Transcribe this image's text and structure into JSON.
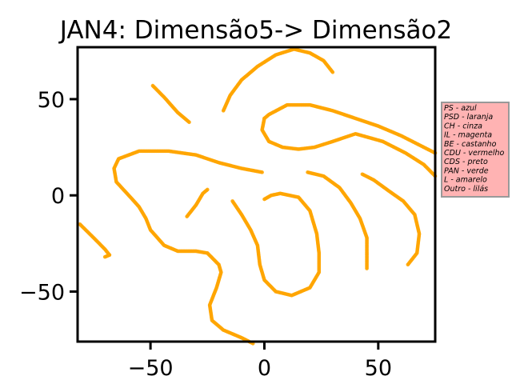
{
  "chart_data": {
    "type": "scatter",
    "title": "JAN4: Dimensão5-> Dimensão2",
    "xlabel": "",
    "ylabel": "",
    "xlim": [
      -82,
      75
    ],
    "ylim": [
      -76,
      77
    ],
    "xticks": [
      -50,
      0,
      50
    ],
    "yticks": [
      -50,
      0,
      50
    ],
    "x_tick_labels": [
      "−50",
      "0",
      "50"
    ],
    "y_tick_labels": [
      "−50",
      "0",
      "50"
    ],
    "grid": false,
    "point_color": "#ffa500",
    "legend": {
      "placement": "outside-right",
      "background": "#ffb3b3",
      "border": "#999999",
      "entries": [
        "PS - azul",
        "PSD - laranja",
        "CH - cinza",
        "IL - magenta",
        "BE - castanho",
        "CDU - vermelho",
        "CDS - preto",
        "PAN - verde",
        "L - amarelo",
        "Outro - lilás"
      ]
    },
    "series": [
      {
        "color": "#ffa500",
        "curves": [
          [
            [
              -49,
              57
            ],
            [
              -44,
              51
            ],
            [
              -38,
              43
            ],
            [
              -33,
              38
            ]
          ],
          [
            [
              -18,
              44
            ],
            [
              -15,
              52
            ],
            [
              -10,
              60
            ],
            [
              -3,
              67
            ],
            [
              5,
              73
            ],
            [
              13,
              76
            ],
            [
              20,
              74
            ],
            [
              26,
              70
            ],
            [
              30,
              64
            ]
          ],
          [
            [
              0,
              40
            ],
            [
              -1,
              34
            ],
            [
              2,
              28
            ],
            [
              8,
              25
            ],
            [
              15,
              24
            ],
            [
              22,
              25
            ],
            [
              30,
              28
            ],
            [
              40,
              32
            ],
            [
              52,
              28
            ],
            [
              62,
              22
            ],
            [
              70,
              16
            ],
            [
              75,
              10
            ]
          ],
          [
            [
              0,
              40
            ],
            [
              2,
              42
            ],
            [
              10,
              47
            ],
            [
              20,
              47
            ],
            [
              30,
              44
            ],
            [
              40,
              40
            ],
            [
              50,
              36
            ],
            [
              60,
              31
            ],
            [
              70,
              25
            ],
            [
              75,
              22
            ]
          ],
          [
            [
              -81,
              -15
            ],
            [
              -75,
              -22
            ],
            [
              -70,
              -28
            ],
            [
              -68,
              -31
            ]
          ],
          [
            [
              -68,
              -31
            ],
            [
              -70,
              -32
            ]
          ],
          [
            [
              -1,
              12
            ],
            [
              -10,
              14
            ],
            [
              -20,
              17
            ],
            [
              -30,
              21
            ],
            [
              -42,
              23
            ],
            [
              -55,
              23
            ],
            [
              -64,
              19
            ],
            [
              -66,
              14
            ],
            [
              -65,
              7
            ],
            [
              -58,
              -2
            ],
            [
              -55,
              -6
            ],
            [
              -52,
              -12
            ],
            [
              -50,
              -18
            ],
            [
              -44,
              -26
            ],
            [
              -38,
              -29
            ],
            [
              -30,
              -29
            ],
            [
              -25,
              -30
            ],
            [
              -20,
              -36
            ],
            [
              -19,
              -40
            ],
            [
              -21,
              -48
            ],
            [
              -24,
              -57
            ],
            [
              -23,
              -65
            ],
            [
              -18,
              -70
            ],
            [
              -10,
              -74
            ],
            [
              -5,
              -77
            ]
          ],
          [
            [
              -34,
              -11
            ],
            [
              -30,
              -5
            ],
            [
              -27,
              1
            ],
            [
              -25,
              3
            ]
          ],
          [
            [
              -14,
              -3
            ],
            [
              -10,
              -10
            ],
            [
              -6,
              -18
            ],
            [
              -3,
              -26
            ],
            [
              -2,
              -36
            ],
            [
              0,
              -44
            ],
            [
              5,
              -50
            ],
            [
              12,
              -52
            ],
            [
              20,
              -48
            ],
            [
              24,
              -40
            ],
            [
              24,
              -30
            ],
            [
              23,
              -20
            ],
            [
              20,
              -8
            ],
            [
              15,
              -1
            ],
            [
              7,
              1
            ],
            [
              3,
              0
            ],
            [
              0,
              -2
            ]
          ],
          [
            [
              19,
              12
            ],
            [
              26,
              10
            ],
            [
              33,
              4
            ],
            [
              38,
              -4
            ],
            [
              42,
              -12
            ],
            [
              45,
              -22
            ],
            [
              45,
              -38
            ]
          ],
          [
            [
              43,
              11
            ],
            [
              48,
              8
            ],
            [
              55,
              2
            ],
            [
              61,
              -3
            ],
            [
              66,
              -10
            ],
            [
              68,
              -20
            ],
            [
              67,
              -30
            ],
            [
              63,
              -36
            ]
          ]
        ]
      }
    ]
  }
}
